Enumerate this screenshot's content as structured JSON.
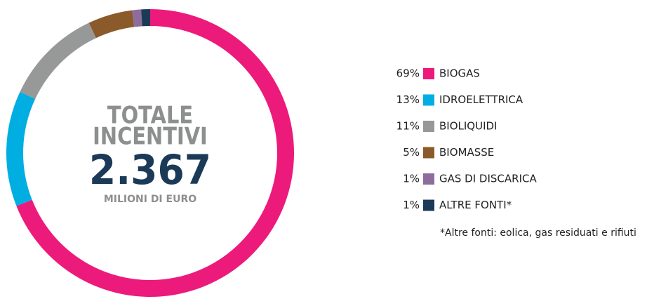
{
  "chart_data": {
    "type": "donut",
    "categories": [
      "BIOGAS",
      "IDROELETTRICA",
      "BIOLIQUIDI",
      "BIOMASSE",
      "GAS DI DISCARICA",
      "ALTRE FONTI*"
    ],
    "values": [
      69,
      13,
      11,
      5,
      1,
      1
    ],
    "value_labels": [
      "69%",
      "13%",
      "11%",
      "5%",
      "1%",
      "1%"
    ],
    "colors": [
      "#ec1a7b",
      "#00aee2",
      "#979998",
      "#8b5a2b",
      "#8e6c9c",
      "#1b3a57"
    ],
    "center_title": [
      "TOTALE",
      "INCENTIVI"
    ],
    "total": {
      "value": 2367,
      "label": "2.367"
    },
    "unit": "MILIONI DI EURO",
    "note": "*Altre fonti: eolica, gas residuati e rifiuti",
    "legend": "right"
  }
}
